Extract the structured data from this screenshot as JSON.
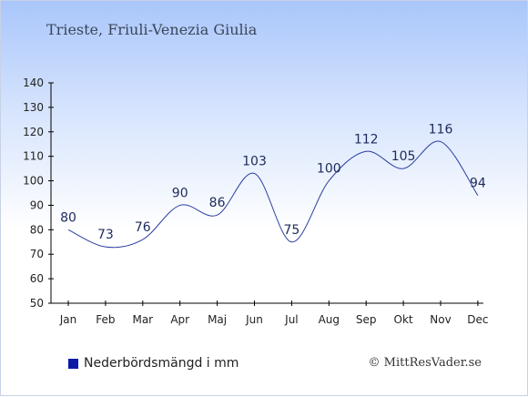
{
  "header": {
    "title": "Trieste, Friuli-Venezia Giulia"
  },
  "legend": {
    "label": "Nederbördsmängd i mm"
  },
  "credit": {
    "text": "© MittResVader.se"
  },
  "colors": {
    "line": "#2b3fa0",
    "legend_swatch": "#0a1aa5",
    "label": "#1c2a5c",
    "axis": "#000000"
  },
  "chart_data": {
    "type": "line",
    "categories": [
      "Jan",
      "Feb",
      "Mar",
      "Apr",
      "Maj",
      "Jun",
      "Jul",
      "Aug",
      "Sep",
      "Okt",
      "Nov",
      "Dec"
    ],
    "series": [
      {
        "name": "Nederbördsmängd i mm",
        "values": [
          80,
          73,
          76,
          90,
          86,
          103,
          75,
          100,
          112,
          105,
          116,
          94
        ]
      }
    ],
    "ylim": [
      50,
      140
    ],
    "yticks": [
      50,
      60,
      70,
      80,
      90,
      100,
      110,
      120,
      130,
      140
    ],
    "grid": false,
    "legend_position": "bottom-left"
  }
}
